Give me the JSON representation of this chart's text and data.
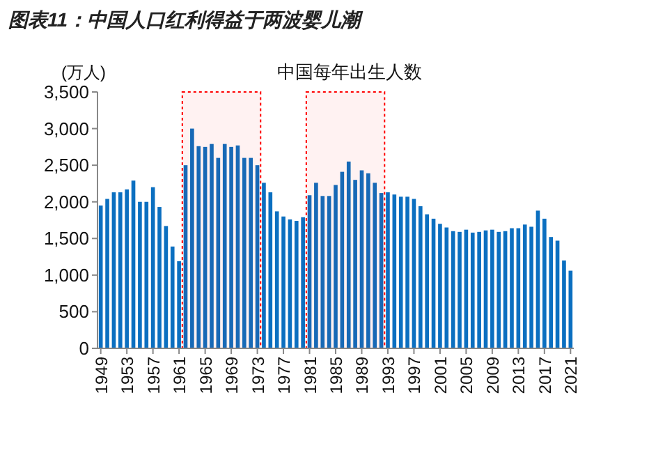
{
  "chart_data": {
    "type": "bar",
    "title": "图表11：中国人口红利得益于两波婴儿潮",
    "subtitle": "中国每年出生人数",
    "ylabel": "(万人)",
    "x": [
      1949,
      1950,
      1951,
      1952,
      1953,
      1954,
      1955,
      1956,
      1957,
      1958,
      1959,
      1960,
      1961,
      1962,
      1963,
      1964,
      1965,
      1966,
      1967,
      1968,
      1969,
      1970,
      1971,
      1972,
      1973,
      1974,
      1975,
      1976,
      1977,
      1978,
      1979,
      1980,
      1981,
      1982,
      1983,
      1984,
      1985,
      1986,
      1987,
      1988,
      1989,
      1990,
      1991,
      1992,
      1993,
      1994,
      1995,
      1996,
      1997,
      1998,
      1999,
      2000,
      2001,
      2002,
      2003,
      2004,
      2005,
      2006,
      2007,
      2008,
      2009,
      2010,
      2011,
      2012,
      2013,
      2014,
      2015,
      2016,
      2017,
      2018,
      2019,
      2020,
      2021
    ],
    "values": [
      1950,
      2040,
      2130,
      2130,
      2170,
      2290,
      2000,
      2000,
      2200,
      1930,
      1670,
      1390,
      1190,
      2500,
      3000,
      2760,
      2750,
      2790,
      2600,
      2790,
      2750,
      2770,
      2600,
      2600,
      2500,
      2260,
      2130,
      1870,
      1800,
      1760,
      1740,
      1790,
      2090,
      2260,
      2080,
      2080,
      2230,
      2410,
      2550,
      2300,
      2430,
      2390,
      2260,
      2120,
      2130,
      2100,
      2070,
      2070,
      2040,
      1940,
      1830,
      1770,
      1700,
      1650,
      1600,
      1590,
      1620,
      1580,
      1590,
      1610,
      1620,
      1590,
      1600,
      1640,
      1640,
      1690,
      1660,
      1880,
      1770,
      1520,
      1470,
      1200,
      1060
    ],
    "color": "#0b6fc0",
    "xlim": [
      1948.5,
      2021.5
    ],
    "xticks": [
      1949,
      1953,
      1957,
      1961,
      1965,
      1969,
      1973,
      1977,
      1981,
      1985,
      1989,
      1993,
      1997,
      2001,
      2005,
      2009,
      2013,
      2017,
      2021
    ],
    "ylim": [
      0,
      3500
    ],
    "yticks": [
      {
        "value": 0,
        "label": "0"
      },
      {
        "value": 500,
        "label": "500"
      },
      {
        "value": 1000,
        "label": "1,000"
      },
      {
        "value": 1500,
        "label": "1,500"
      },
      {
        "value": 2000,
        "label": "2,000"
      },
      {
        "value": 2500,
        "label": "2,500"
      },
      {
        "value": 3000,
        "label": "3,000"
      },
      {
        "value": 3500,
        "label": "3,500"
      }
    ],
    "bands": [
      {
        "axis": "x",
        "from": 1961.5,
        "to": 1973.5,
        "color": "#ff0000"
      },
      {
        "axis": "x",
        "from": 1980.5,
        "to": 1992.5,
        "color": "#ff0000"
      }
    ],
    "grid": false
  }
}
